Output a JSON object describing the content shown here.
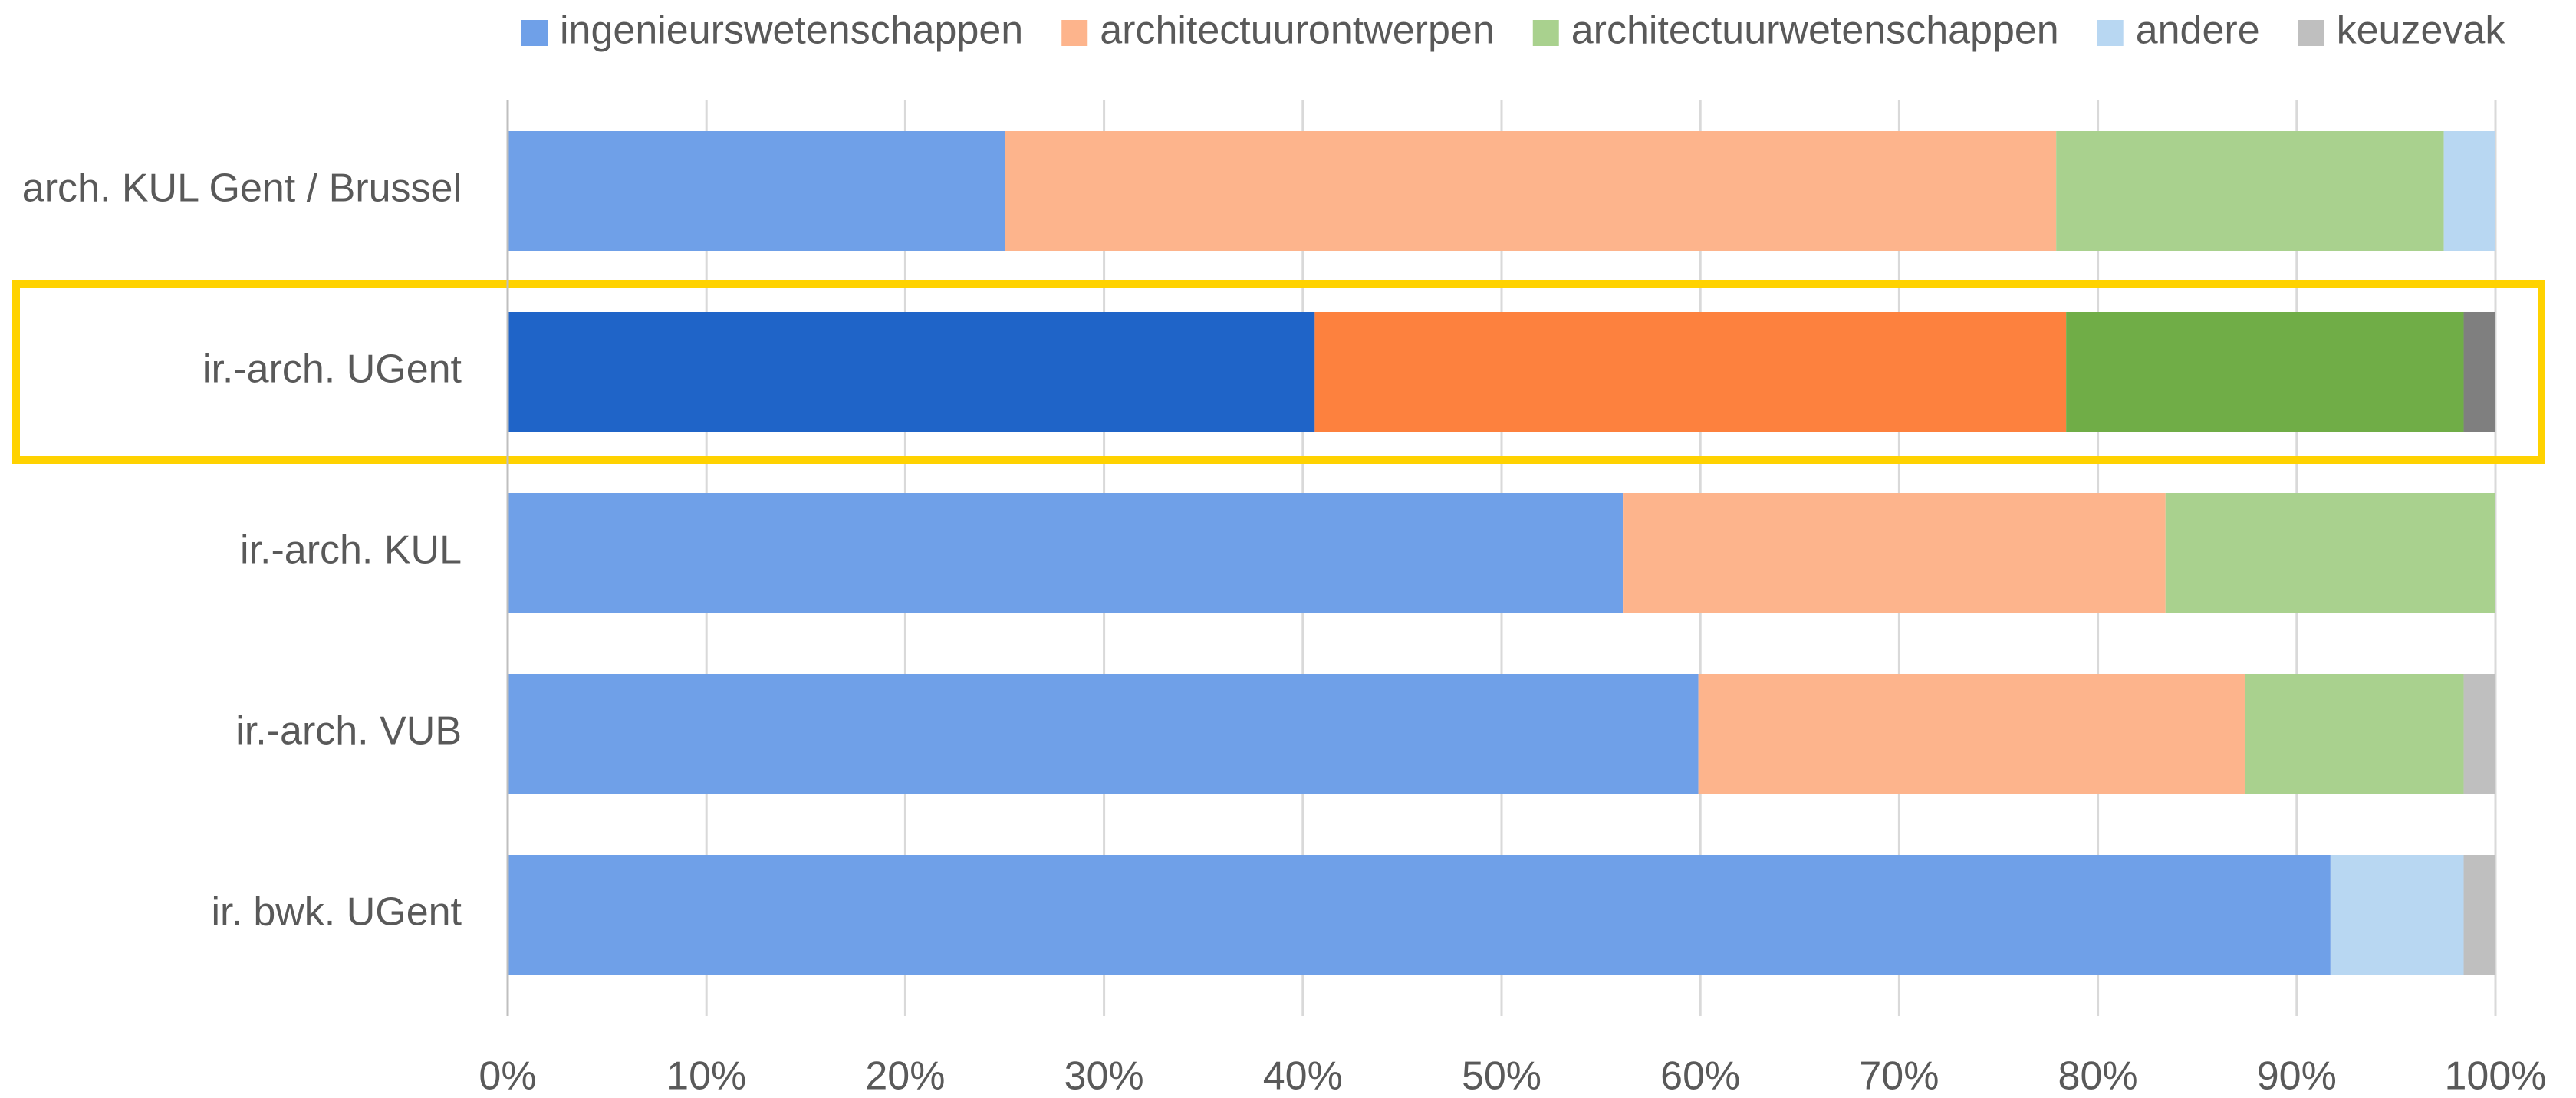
{
  "chart_data": {
    "type": "stacked-barh",
    "categories": [
      "arch. KUL Gent / Brussel",
      "ir.-arch. UGent",
      "ir.-arch. KUL",
      "ir.-arch. VUB",
      "ir. bwk. UGent"
    ],
    "series": [
      {
        "name": "ingenieurswetenschappen",
        "color": "#6fa0e8",
        "highlight_color": "#1f64c8",
        "values": [
          25.0,
          40.6,
          56.1,
          59.9,
          91.7
        ]
      },
      {
        "name": "architectuurontwerpen",
        "color": "#fdb48c",
        "highlight_color": "#fd813e",
        "values": [
          52.9,
          37.8,
          27.3,
          27.5,
          0
        ]
      },
      {
        "name": "architectuurwetenschappen",
        "color": "#a9d18e",
        "highlight_color": "#70ad47",
        "values": [
          19.5,
          20.0,
          16.6,
          11.0,
          0
        ]
      },
      {
        "name": "andere",
        "color": "#b8d7f2",
        "highlight_color": "#5b9bd5",
        "values": [
          2.6,
          0,
          0,
          0,
          6.7
        ]
      },
      {
        "name": "keuzevak",
        "color": "#bfbfbf",
        "highlight_color": "#7f7f7f",
        "values": [
          0,
          1.6,
          0,
          1.6,
          1.6
        ]
      }
    ],
    "highlight": {
      "category": 1,
      "color": "#ffd200"
    },
    "xlim": [
      0,
      100
    ],
    "xticks": [
      {
        "value": 0,
        "label": "0%"
      },
      {
        "value": 10,
        "label": "10%"
      },
      {
        "value": 20,
        "label": "20%"
      },
      {
        "value": 30,
        "label": "30%"
      },
      {
        "value": 40,
        "label": "40%"
      },
      {
        "value": 50,
        "label": "50%"
      },
      {
        "value": 60,
        "label": "60%"
      },
      {
        "value": 70,
        "label": "70%"
      },
      {
        "value": 80,
        "label": "80%"
      },
      {
        "value": 90,
        "label": "90%"
      },
      {
        "value": 100,
        "label": "100%"
      }
    ],
    "grid": true,
    "legend": "top"
  }
}
